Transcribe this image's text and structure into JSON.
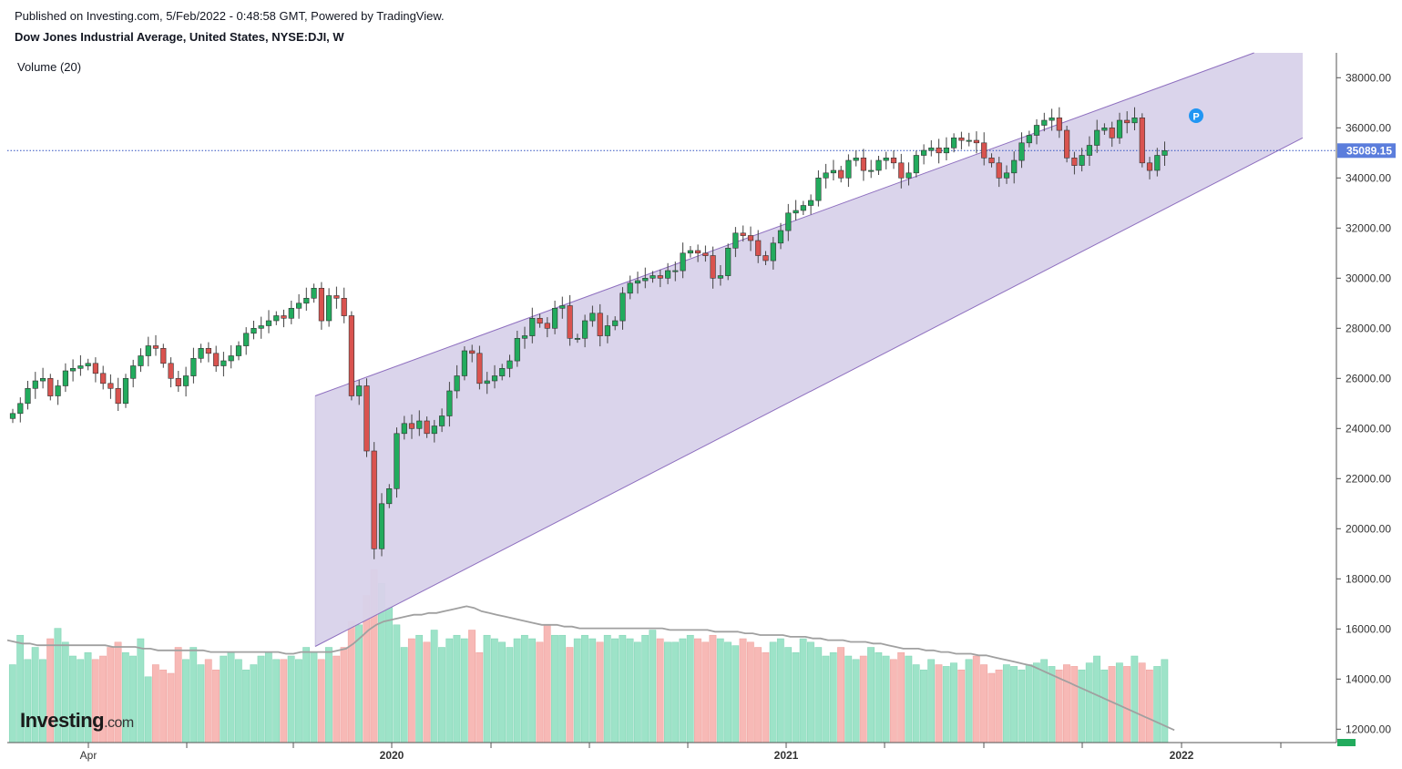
{
  "header": {
    "published": "Published on Investing.com, 5/Feb/2022 - 0:48:58 GMT, Powered by TradingView.",
    "symbol": "Dow Jones Industrial Average, United States, NYSE:DJI, W"
  },
  "indicator": {
    "label": "Volume (20)"
  },
  "logo": {
    "brand": "Investing",
    "suffix": ".com"
  },
  "marker": {
    "label": "P",
    "color": "#2196f3"
  },
  "last_price": {
    "label": "35089.15",
    "value": 35089.15,
    "color": "#5b7ddc"
  },
  "colors": {
    "up": "#26a69a",
    "up_body": "#22ab5d",
    "down": "#d9534f",
    "vol_up": "#9de3c8",
    "vol_down": "#f7b9b6",
    "channel_fill": "#d8d2ea",
    "channel_line": "#8e6fbf",
    "ma_line": "#a0a0a0"
  },
  "chart_data": {
    "type": "candlestick",
    "interval": "W",
    "y_axis": {
      "position": "right",
      "min": 11500,
      "max": 38800,
      "ticks": [
        12000,
        14000,
        16000,
        18000,
        20000,
        22000,
        24000,
        26000,
        28000,
        30000,
        32000,
        34000,
        36000,
        38000
      ],
      "tick_labels": [
        "12000.00",
        "14000.00",
        "16000.00",
        "18000.00",
        "20000.00",
        "22000.00",
        "24000.00",
        "26000.00",
        "28000.00",
        "30000.00",
        "32000.00",
        "34000.00",
        "36000.00",
        "38000.00"
      ]
    },
    "x_axis": {
      "labels": [
        {
          "text": "Apr",
          "week": 9
        },
        {
          "text": "2020",
          "week": 48
        },
        {
          "text": "2021",
          "week": 100
        },
        {
          "text": "2022",
          "week": 153
        }
      ],
      "minor_ticks_week": [
        22,
        35,
        61,
        74,
        87,
        113,
        126,
        139,
        165
      ]
    },
    "channel": {
      "start_week": 40,
      "end_week": 171,
      "upper": [
        25300,
        39700
      ],
      "lower": [
        15300,
        35600
      ]
    },
    "close_values": [
      24600,
      25000,
      25600,
      25900,
      26000,
      25300,
      25700,
      26300,
      26400,
      26500,
      26600,
      26200,
      25800,
      25600,
      25000,
      26000,
      26500,
      26900,
      27300,
      27200,
      26600,
      26000,
      25700,
      26100,
      26800,
      27200,
      27000,
      26500,
      26700,
      26900,
      27300,
      27800,
      28000,
      28100,
      28300,
      28500,
      28400,
      28800,
      29000,
      29200,
      29600,
      28300,
      29300,
      29200,
      28500,
      25300,
      25700,
      23100,
      19200,
      21000,
      21600,
      23800,
      24200,
      24000,
      24300,
      23800,
      24100,
      24500,
      25500,
      26100,
      27100,
      27000,
      25800,
      25900,
      26100,
      26400,
      26700,
      27600,
      27700,
      28400,
      28200,
      28000,
      28800,
      28900,
      27600,
      27600,
      28300,
      28600,
      27700,
      28100,
      28300,
      29400,
      29800,
      29900,
      30000,
      30100,
      30000,
      30300,
      30300,
      31000,
      31100,
      31000,
      30900,
      30000,
      30100,
      31200,
      31800,
      31700,
      31500,
      30900,
      30700,
      31400,
      31900,
      32600,
      32700,
      32900,
      33100,
      34000,
      34200,
      34300,
      34000,
      34700,
      34800,
      34300,
      34300,
      34700,
      34800,
      34600,
      34000,
      34200,
      34900,
      35100,
      35200,
      35000,
      35200,
      35600,
      35500,
      35500,
      35400,
      34800,
      34600,
      34000,
      34200,
      34700,
      35400,
      35700,
      36100,
      36300,
      36400,
      35900,
      34800,
      34500,
      34900,
      35300,
      35900,
      36000,
      35600,
      36300,
      36200,
      36400,
      34600,
      34300,
      34900,
      35089.15
    ],
    "volume_relative": [
      0.45,
      0.62,
      0.48,
      0.55,
      0.48,
      0.6,
      0.66,
      0.58,
      0.5,
      0.48,
      0.52,
      0.48,
      0.5,
      0.55,
      0.58,
      0.52,
      0.5,
      0.6,
      0.38,
      0.45,
      0.42,
      0.4,
      0.55,
      0.48,
      0.55,
      0.45,
      0.48,
      0.42,
      0.5,
      0.52,
      0.48,
      0.42,
      0.45,
      0.5,
      0.52,
      0.48,
      0.48,
      0.5,
      0.48,
      0.55,
      0.52,
      0.48,
      0.55,
      0.5,
      0.55,
      0.7,
      0.68,
      0.85,
      1.0,
      0.92,
      0.78,
      0.68,
      0.55,
      0.6,
      0.62,
      0.58,
      0.65,
      0.55,
      0.6,
      0.62,
      0.6,
      0.65,
      0.52,
      0.62,
      0.6,
      0.58,
      0.55,
      0.6,
      0.62,
      0.6,
      0.58,
      0.68,
      0.62,
      0.62,
      0.55,
      0.6,
      0.62,
      0.6,
      0.58,
      0.62,
      0.6,
      0.62,
      0.6,
      0.58,
      0.62,
      0.65,
      0.6,
      0.58,
      0.58,
      0.6,
      0.62,
      0.6,
      0.58,
      0.62,
      0.6,
      0.58,
      0.56,
      0.6,
      0.58,
      0.55,
      0.52,
      0.58,
      0.6,
      0.55,
      0.52,
      0.6,
      0.58,
      0.55,
      0.5,
      0.52,
      0.55,
      0.5,
      0.48,
      0.5,
      0.55,
      0.52,
      0.5,
      0.48,
      0.52,
      0.5,
      0.45,
      0.42,
      0.48,
      0.45,
      0.44,
      0.46,
      0.42,
      0.48,
      0.5,
      0.45,
      0.4,
      0.42,
      0.45,
      0.44,
      0.42,
      0.45,
      0.46,
      0.48,
      0.44,
      0.42,
      0.45,
      0.44,
      0.42,
      0.46,
      0.5,
      0.42,
      0.44,
      0.46,
      0.44,
      0.5,
      0.46,
      0.42,
      0.44,
      0.48
    ],
    "volume_ma_relative": [
      0.55,
      0.54,
      0.53,
      0.53,
      0.52,
      0.52,
      0.52,
      0.52,
      0.52,
      0.52,
      0.52,
      0.52,
      0.52,
      0.52,
      0.51,
      0.51,
      0.51,
      0.51,
      0.5,
      0.5,
      0.49,
      0.49,
      0.49,
      0.49,
      0.49,
      0.49,
      0.49,
      0.48,
      0.48,
      0.48,
      0.48,
      0.48,
      0.48,
      0.48,
      0.48,
      0.48,
      0.48,
      0.47,
      0.47,
      0.48,
      0.48,
      0.48,
      0.48,
      0.48,
      0.49,
      0.5,
      0.53,
      0.57,
      0.61,
      0.64,
      0.66,
      0.67,
      0.68,
      0.69,
      0.7,
      0.7,
      0.71,
      0.71,
      0.72,
      0.73,
      0.74,
      0.75,
      0.74,
      0.72,
      0.71,
      0.7,
      0.69,
      0.68,
      0.67,
      0.66,
      0.65,
      0.64,
      0.64,
      0.64,
      0.63,
      0.63,
      0.62,
      0.62,
      0.62,
      0.62,
      0.62,
      0.62,
      0.62,
      0.62,
      0.62,
      0.62,
      0.62,
      0.62,
      0.61,
      0.61,
      0.61,
      0.61,
      0.61,
      0.61,
      0.6,
      0.6,
      0.6,
      0.6,
      0.59,
      0.59,
      0.58,
      0.58,
      0.58,
      0.58,
      0.57,
      0.57,
      0.57,
      0.56,
      0.56,
      0.55,
      0.55,
      0.55,
      0.54,
      0.54,
      0.54,
      0.53,
      0.53,
      0.52,
      0.51,
      0.5,
      0.5,
      0.5,
      0.49,
      0.49,
      0.48,
      0.48,
      0.47,
      0.47,
      0.47,
      0.46,
      0.46,
      0.45,
      0.44,
      0.43,
      0.42,
      0.41,
      0.4,
      0.38,
      0.36,
      0.34,
      0.32,
      0.3,
      0.28,
      0.26,
      0.24,
      0.22,
      0.2,
      0.18,
      0.16,
      0.14,
      0.12,
      0.1,
      0.08,
      0.06,
      0.04,
      0.02
    ]
  }
}
